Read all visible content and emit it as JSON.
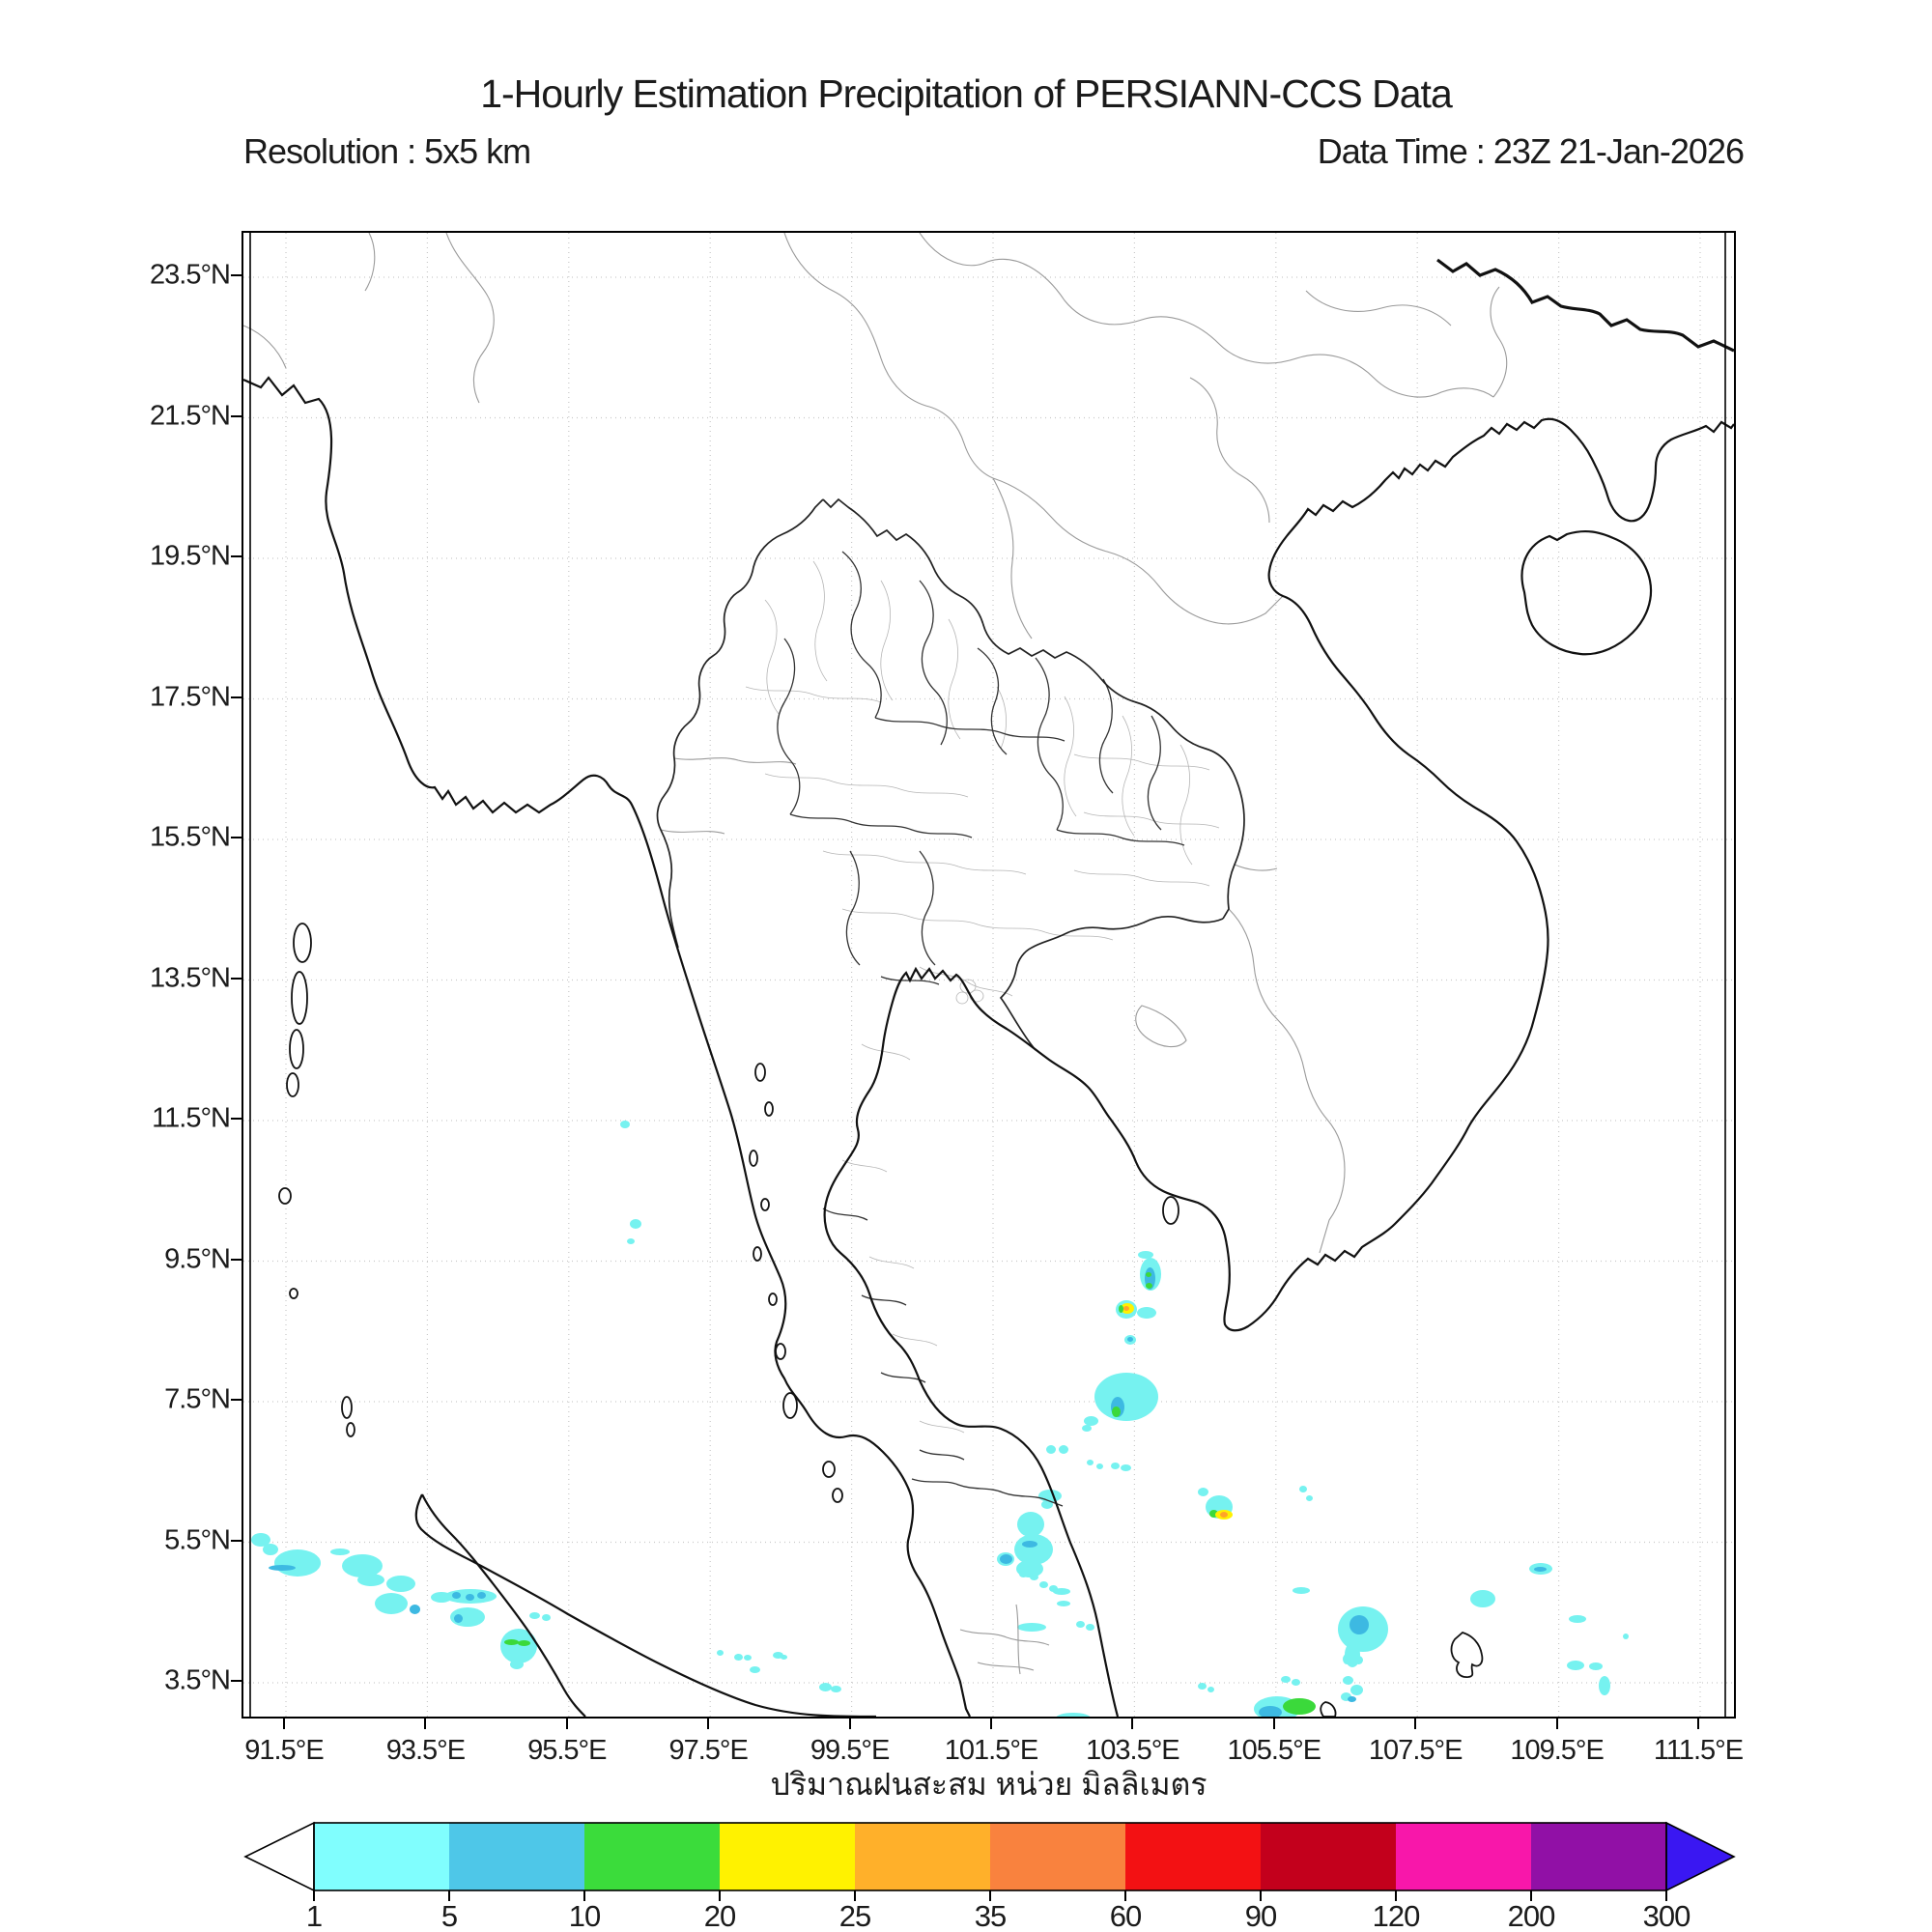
{
  "header": {
    "title": "1-Hourly Estimation Precipitation of PERSIANN-CCS Data",
    "resolution_label": "Resolution : 5x5 km",
    "datatime_label": "Data Time : 23Z 21-Jan-2026"
  },
  "axes": {
    "x_ticks": [
      {
        "label": "91.5°E",
        "lon": 91.5
      },
      {
        "label": "93.5°E",
        "lon": 93.5
      },
      {
        "label": "95.5°E",
        "lon": 95.5
      },
      {
        "label": "97.5°E",
        "lon": 97.5
      },
      {
        "label": "99.5°E",
        "lon": 99.5
      },
      {
        "label": "101.5°E",
        "lon": 101.5
      },
      {
        "label": "103.5°E",
        "lon": 103.5
      },
      {
        "label": "105.5°E",
        "lon": 105.5
      },
      {
        "label": "107.5°E",
        "lon": 107.5
      },
      {
        "label": "109.5°E",
        "lon": 109.5
      },
      {
        "label": "111.5°E",
        "lon": 111.5
      }
    ],
    "y_ticks": [
      {
        "label": "23.5°N",
        "lat": 23.5
      },
      {
        "label": "21.5°N",
        "lat": 21.5
      },
      {
        "label": "19.5°N",
        "lat": 19.5
      },
      {
        "label": "17.5°N",
        "lat": 17.5
      },
      {
        "label": "15.5°N",
        "lat": 15.5
      },
      {
        "label": "13.5°N",
        "lat": 13.5
      },
      {
        "label": "11.5°N",
        "lat": 11.5
      },
      {
        "label": "9.5°N",
        "lat": 9.5
      },
      {
        "label": "7.5°N",
        "lat": 7.5
      },
      {
        "label": "5.5°N",
        "lat": 5.5
      },
      {
        "label": "3.5°N",
        "lat": 3.5
      }
    ],
    "extent": {
      "lon_min": 90.9,
      "lon_max": 112.0,
      "lat_min": 2.9,
      "lat_max": 24.1
    },
    "grid_color": "#c9c9c9"
  },
  "colorbar": {
    "caption": "ปริมาณฝนสะสม หน่วย มิลลิเมตร",
    "levels": [
      "1",
      "5",
      "10",
      "20",
      "25",
      "35",
      "60",
      "90",
      "120",
      "200",
      "300"
    ],
    "colors": [
      "#80FEFE",
      "#4EC7E8",
      "#3BDC3B",
      "#FFF200",
      "#FFB02A",
      "#F9823E",
      "#F31113",
      "#C3001C",
      "#F817AA",
      "#9110A6"
    ],
    "under_color": "#FFFFFF",
    "over_color": "#3A17F2"
  },
  "map": {
    "cell_colors": {
      "a": "#76F2F0",
      "b": "#3DB9E2",
      "g": "#3BD93B",
      "y": "#FFF100",
      "o": "#FFA428"
    },
    "cells": [
      [
        8,
        1346,
        20,
        14,
        "a"
      ],
      [
        20,
        1357,
        16,
        12,
        "a"
      ],
      [
        32,
        1363,
        48,
        28,
        "a"
      ],
      [
        26,
        1379,
        28,
        6,
        "b"
      ],
      [
        90,
        1362,
        20,
        7,
        "a"
      ],
      [
        102,
        1368,
        42,
        24,
        "a"
      ],
      [
        118,
        1388,
        28,
        13,
        "a"
      ],
      [
        148,
        1390,
        30,
        17,
        "a"
      ],
      [
        136,
        1408,
        34,
        22,
        "a"
      ],
      [
        172,
        1420,
        11,
        10,
        "b"
      ],
      [
        194,
        1407,
        22,
        11,
        "a"
      ],
      [
        208,
        1404,
        54,
        15,
        "a"
      ],
      [
        216,
        1407,
        9,
        7,
        "b"
      ],
      [
        230,
        1409,
        9,
        7,
        "b"
      ],
      [
        242,
        1407,
        9,
        7,
        "b"
      ],
      [
        214,
        1423,
        36,
        20,
        "a"
      ],
      [
        218,
        1430,
        9,
        9,
        "b"
      ],
      [
        296,
        1428,
        11,
        7,
        "a"
      ],
      [
        309,
        1430,
        9,
        7,
        "a"
      ],
      [
        266,
        1445,
        38,
        36,
        "a"
      ],
      [
        270,
        1456,
        15,
        6,
        "g"
      ],
      [
        284,
        1457,
        13,
        6,
        "g"
      ],
      [
        276,
        1477,
        14,
        10,
        "a"
      ],
      [
        390,
        919,
        10,
        8,
        "a"
      ],
      [
        400,
        1021,
        12,
        10,
        "a"
      ],
      [
        397,
        1041,
        8,
        6,
        "a"
      ],
      [
        490,
        1467,
        7,
        6,
        "a"
      ],
      [
        508,
        1471,
        9,
        7,
        "a"
      ],
      [
        518,
        1472,
        8,
        6,
        "a"
      ],
      [
        548,
        1469,
        11,
        7,
        "a"
      ],
      [
        556,
        1472,
        7,
        5,
        "a"
      ],
      [
        524,
        1484,
        11,
        7,
        "a"
      ],
      [
        596,
        1501,
        13,
        9,
        "a"
      ],
      [
        608,
        1504,
        11,
        7,
        "a"
      ],
      [
        831,
        1255,
        10,
        9,
        "a"
      ],
      [
        844,
        1255,
        10,
        9,
        "a"
      ],
      [
        873,
        1270,
        7,
        6,
        "a"
      ],
      [
        883,
        1274,
        7,
        6,
        "a"
      ],
      [
        898,
        1273,
        9,
        7,
        "a"
      ],
      [
        908,
        1275,
        11,
        7,
        "a"
      ],
      [
        823,
        1301,
        24,
        13,
        "a"
      ],
      [
        826,
        1312,
        12,
        9,
        "a"
      ],
      [
        801,
        1324,
        28,
        26,
        "a"
      ],
      [
        798,
        1347,
        40,
        32,
        "a"
      ],
      [
        806,
        1354,
        16,
        7,
        "b"
      ],
      [
        800,
        1374,
        28,
        18,
        "a"
      ],
      [
        780,
        1366,
        18,
        14,
        "a"
      ],
      [
        783,
        1368,
        13,
        10,
        "b"
      ],
      [
        803,
        1385,
        9,
        7,
        "a"
      ],
      [
        814,
        1388,
        9,
        7,
        "a"
      ],
      [
        824,
        1396,
        9,
        7,
        "a"
      ],
      [
        834,
        1400,
        9,
        7,
        "a"
      ],
      [
        838,
        1403,
        18,
        7,
        "a"
      ],
      [
        842,
        1416,
        14,
        6,
        "a"
      ],
      [
        801,
        1439,
        30,
        9,
        "a"
      ],
      [
        862,
        1437,
        9,
        7,
        "a"
      ],
      [
        872,
        1440,
        9,
        7,
        "a"
      ],
      [
        841,
        1532,
        36,
        11,
        "a"
      ],
      [
        996,
        1307,
        28,
        24,
        "a"
      ],
      [
        988,
        1299,
        11,
        9,
        "a"
      ],
      [
        1000,
        1322,
        9,
        8,
        "g"
      ],
      [
        1006,
        1322,
        18,
        10,
        "y"
      ],
      [
        1011,
        1324,
        8,
        6,
        "o"
      ],
      [
        1093,
        1297,
        8,
        7,
        "a"
      ],
      [
        1100,
        1307,
        7,
        6,
        "a"
      ],
      [
        1086,
        1402,
        18,
        7,
        "a"
      ],
      [
        1133,
        1422,
        52,
        47,
        "a"
      ],
      [
        1145,
        1431,
        20,
        20,
        "b"
      ],
      [
        1140,
        1459,
        16,
        26,
        "a"
      ],
      [
        1138,
        1471,
        9,
        11,
        "a"
      ],
      [
        1150,
        1473,
        9,
        9,
        "a"
      ],
      [
        1138,
        1494,
        11,
        9,
        "a"
      ],
      [
        1146,
        1503,
        13,
        11,
        "a"
      ],
      [
        1136,
        1511,
        11,
        9,
        "a"
      ],
      [
        1143,
        1515,
        9,
        6,
        "b"
      ],
      [
        1046,
        1515,
        48,
        26,
        "a"
      ],
      [
        1051,
        1525,
        24,
        13,
        "b"
      ],
      [
        1076,
        1517,
        34,
        17,
        "g"
      ],
      [
        1074,
        1494,
        10,
        7,
        "a"
      ],
      [
        1085,
        1497,
        9,
        7,
        "a"
      ],
      [
        988,
        1501,
        9,
        7,
        "a"
      ],
      [
        998,
        1505,
        7,
        6,
        "a"
      ],
      [
        1331,
        1377,
        24,
        12,
        "a"
      ],
      [
        1336,
        1381,
        13,
        5,
        "b"
      ],
      [
        1270,
        1405,
        26,
        18,
        "a"
      ],
      [
        1372,
        1431,
        18,
        8,
        "a"
      ],
      [
        1428,
        1450,
        6,
        6,
        "a"
      ],
      [
        1370,
        1478,
        18,
        10,
        "a"
      ],
      [
        1393,
        1480,
        14,
        8,
        "a"
      ],
      [
        1403,
        1494,
        12,
        20,
        "a"
      ],
      [
        928,
        1061,
        22,
        34,
        "a"
      ],
      [
        933,
        1071,
        11,
        23,
        "b"
      ],
      [
        934,
        1076,
        6,
        5,
        "g"
      ],
      [
        934,
        1087,
        7,
        6,
        "g"
      ],
      [
        926,
        1054,
        16,
        8,
        "a"
      ],
      [
        903,
        1105,
        22,
        19,
        "a"
      ],
      [
        908,
        1108,
        14,
        11,
        "y"
      ],
      [
        906,
        1110,
        5,
        8,
        "g"
      ],
      [
        911,
        1111,
        6,
        5,
        "o"
      ],
      [
        925,
        1112,
        20,
        12,
        "a"
      ],
      [
        912,
        1141,
        12,
        10,
        "a"
      ],
      [
        915,
        1143,
        6,
        5,
        "b"
      ],
      [
        881,
        1180,
        66,
        50,
        "a"
      ],
      [
        898,
        1205,
        14,
        21,
        "b"
      ],
      [
        899,
        1215,
        9,
        11,
        "g"
      ],
      [
        870,
        1225,
        15,
        10,
        "a"
      ],
      [
        868,
        1234,
        10,
        7,
        "a"
      ],
      [
        928,
        1196,
        16,
        9,
        "a"
      ]
    ]
  }
}
